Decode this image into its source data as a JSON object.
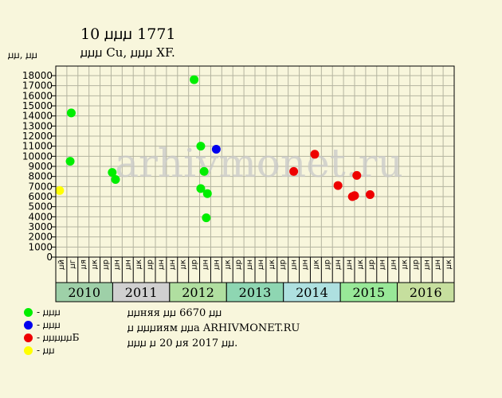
{
  "header": {
    "title": "10 ꙡꙡꙡ 1771",
    "subtitle": "ꙡꙡꙡ Cu, ꙡꙡꙡ XF.",
    "ylabel": "ꙡꙡ, ꙡꙡ"
  },
  "watermark": "arhivmonet.ru",
  "legend": [
    {
      "label": "- ꙡꙡꙡ",
      "color": "#00ee00"
    },
    {
      "label": "- ꙡꙡꙡ",
      "color": "#0000ee"
    },
    {
      "label": "- ꙡꙡꙡꙡꙡБ",
      "color": "#ee0000"
    },
    {
      "label": "- ꙡꙡ",
      "color": "#ffff00"
    }
  ],
  "info": {
    "line1": "ꙡꙡняя ꙡꙡ 6670 ꙡꙡ",
    "line2": "ꙡ ꙡꙡꙡиям ꙡꙡа ARHIVMONET.RU",
    "line3": "ꙡꙡꙡ ꙡ 20 ꙡя 2017 ꙡꙡ."
  },
  "chart_data": {
    "type": "scatter",
    "title": "10 ꙡꙡꙡ 1771",
    "ylabel": "ꙡꙡ, ꙡꙡ",
    "ylim": [
      0,
      18000
    ],
    "yticks": [
      0,
      1000,
      2000,
      3000,
      4000,
      5000,
      6000,
      7000,
      8000,
      9000,
      10000,
      11000,
      12000,
      13000,
      14000,
      15000,
      16000,
      17000,
      18000
    ],
    "grid": true,
    "x_unit": "quarter index from Q1 2010 to Q4 2016",
    "years": [
      "2010",
      "2011",
      "2012",
      "2013",
      "2014",
      "2015",
      "2016"
    ],
    "year_colors": [
      "#9ed0a8",
      "#d0d0d0",
      "#b0dfa0",
      "#8ed6b2",
      "#aee0e0",
      "#98e898",
      "#c6df9e"
    ],
    "month_labels": [
      "ꙡй",
      "ꙡг",
      "ꙡя",
      "ꙡк",
      "ꙡр",
      "ꙡн",
      "ꙡн",
      "ꙡк",
      "ꙡр",
      "ꙡн",
      "ꙡн",
      "ꙡк",
      "ꙡр",
      "ꙡн",
      "ꙡн",
      "ꙡк",
      "ꙡр",
      "ꙡн",
      "ꙡн",
      "ꙡк",
      "ꙡр",
      "ꙡн",
      "ꙡн",
      "ꙡк",
      "ꙡр",
      "ꙡн",
      "ꙡн",
      "ꙡк",
      "ꙡр",
      "ꙡн",
      "ꙡн",
      "ꙡк",
      "ꙡр",
      "ꙡн",
      "ꙡн",
      "ꙡк"
    ],
    "series": [
      {
        "name": "- ꙡꙡꙡ",
        "color": "#00ee00",
        "points": [
          {
            "x": 1.3,
            "y": 9500
          },
          {
            "x": 1.4,
            "y": 14300
          },
          {
            "x": 5.1,
            "y": 8400
          },
          {
            "x": 5.4,
            "y": 7700
          },
          {
            "x": 12.5,
            "y": 17600
          },
          {
            "x": 13.1,
            "y": 11000
          },
          {
            "x": 13.4,
            "y": 8500
          },
          {
            "x": 13.1,
            "y": 6800
          },
          {
            "x": 13.7,
            "y": 6300
          },
          {
            "x": 13.6,
            "y": 3900
          }
        ]
      },
      {
        "name": "- ꙡꙡꙡ",
        "color": "#0000ee",
        "points": [
          {
            "x": 14.5,
            "y": 10700
          }
        ]
      },
      {
        "name": "- ꙡꙡꙡꙡꙡБ",
        "color": "#ee0000",
        "points": [
          {
            "x": 21.5,
            "y": 8500
          },
          {
            "x": 23.4,
            "y": 10200
          },
          {
            "x": 25.5,
            "y": 7100
          },
          {
            "x": 26.8,
            "y": 6000
          },
          {
            "x": 27.0,
            "y": 6100
          },
          {
            "x": 27.2,
            "y": 8100
          },
          {
            "x": 28.4,
            "y": 6200
          }
        ]
      },
      {
        "name": "- ꙡꙡ",
        "color": "#ffff00",
        "points": [
          {
            "x": 0.35,
            "y": 6600
          }
        ]
      }
    ]
  }
}
